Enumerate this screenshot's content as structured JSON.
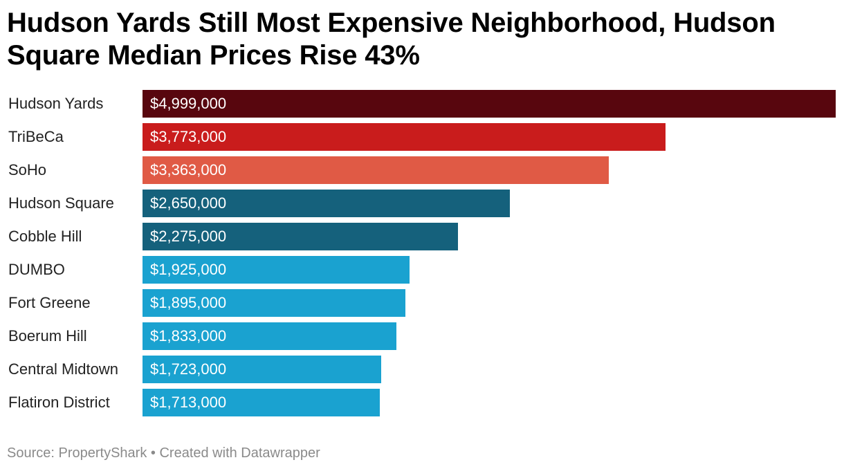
{
  "title": "Hudson Yards Still Most Expensive Neighborhood, Hudson Square Median Prices Rise 43%",
  "chart_data": {
    "type": "bar",
    "orientation": "horizontal",
    "categories": [
      "Hudson Yards",
      "TriBeCa",
      "SoHo",
      "Hudson Square",
      "Cobble Hill",
      "DUMBO",
      "Fort Greene",
      "Boerum Hill",
      "Central Midtown",
      "Flatiron District"
    ],
    "values": [
      4999000,
      3773000,
      3363000,
      2650000,
      2275000,
      1925000,
      1895000,
      1833000,
      1723000,
      1713000
    ],
    "value_labels": [
      "$4,999,000",
      "$3,773,000",
      "$3,363,000",
      "$2,650,000",
      "$2,275,000",
      "$1,925,000",
      "$1,895,000",
      "$1,833,000",
      "$1,723,000",
      "$1,713,000"
    ],
    "colors": [
      "#58060e",
      "#c91c1c",
      "#e05a45",
      "#15617c",
      "#15617c",
      "#1aa2d0",
      "#1aa2d0",
      "#1aa2d0",
      "#1aa2d0",
      "#1aa2d0"
    ],
    "xlim": [
      0,
      4999000
    ],
    "grid": false,
    "legend": "none"
  },
  "footer": {
    "source": "Source: PropertyShark",
    "separator": "•",
    "credit": "Created with Datawrapper"
  }
}
